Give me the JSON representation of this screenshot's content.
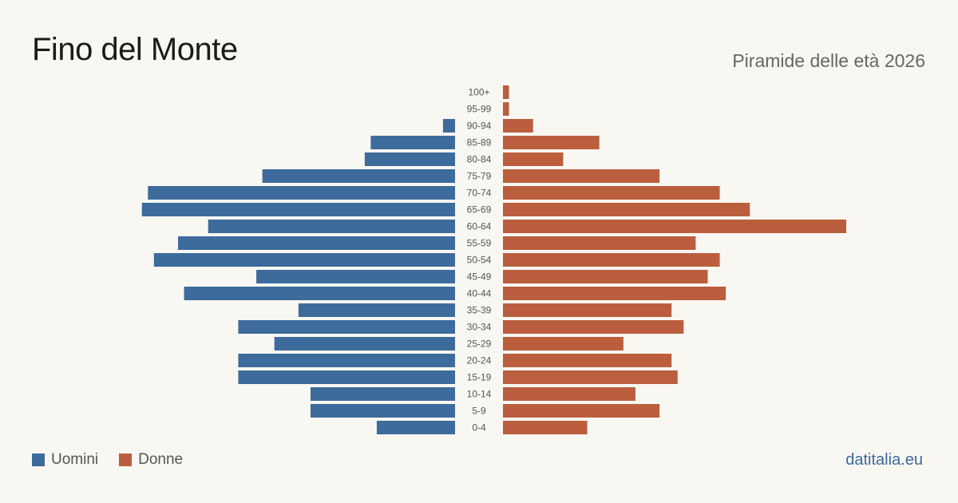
{
  "header": {
    "title": "Fino del Monte",
    "subtitle": "Piramide delle età 2026"
  },
  "legend": {
    "men_label": "Uomini",
    "women_label": "Donne"
  },
  "footer": {
    "source": "datitalia.eu"
  },
  "colors": {
    "men": "#3d6b9c",
    "women": "#bb5e3d",
    "background": "#f9f7f2"
  },
  "chart_data": {
    "type": "bar",
    "orientation": "horizontal-mirrored",
    "title": "Fino del Monte",
    "subtitle": "Piramide delle età 2026",
    "categories": [
      "100+",
      "95-99",
      "90-94",
      "85-89",
      "80-84",
      "75-79",
      "70-74",
      "65-69",
      "60-64",
      "55-59",
      "50-54",
      "45-49",
      "40-44",
      "35-39",
      "30-34",
      "25-29",
      "20-24",
      "15-19",
      "10-14",
      "5-9",
      "0-4"
    ],
    "series": [
      {
        "name": "Uomini",
        "values": [
          0,
          0,
          2,
          14,
          15,
          32,
          51,
          52,
          41,
          46,
          50,
          33,
          45,
          26,
          36,
          30,
          36,
          36,
          24,
          24,
          13
        ]
      },
      {
        "name": "Donne",
        "values": [
          1,
          1,
          5,
          16,
          10,
          26,
          36,
          41,
          57,
          32,
          36,
          34,
          37,
          28,
          30,
          20,
          28,
          29,
          22,
          26,
          14
        ]
      }
    ],
    "xlim": [
      0,
      57
    ],
    "legend_position": "bottom-left",
    "grid": false
  }
}
